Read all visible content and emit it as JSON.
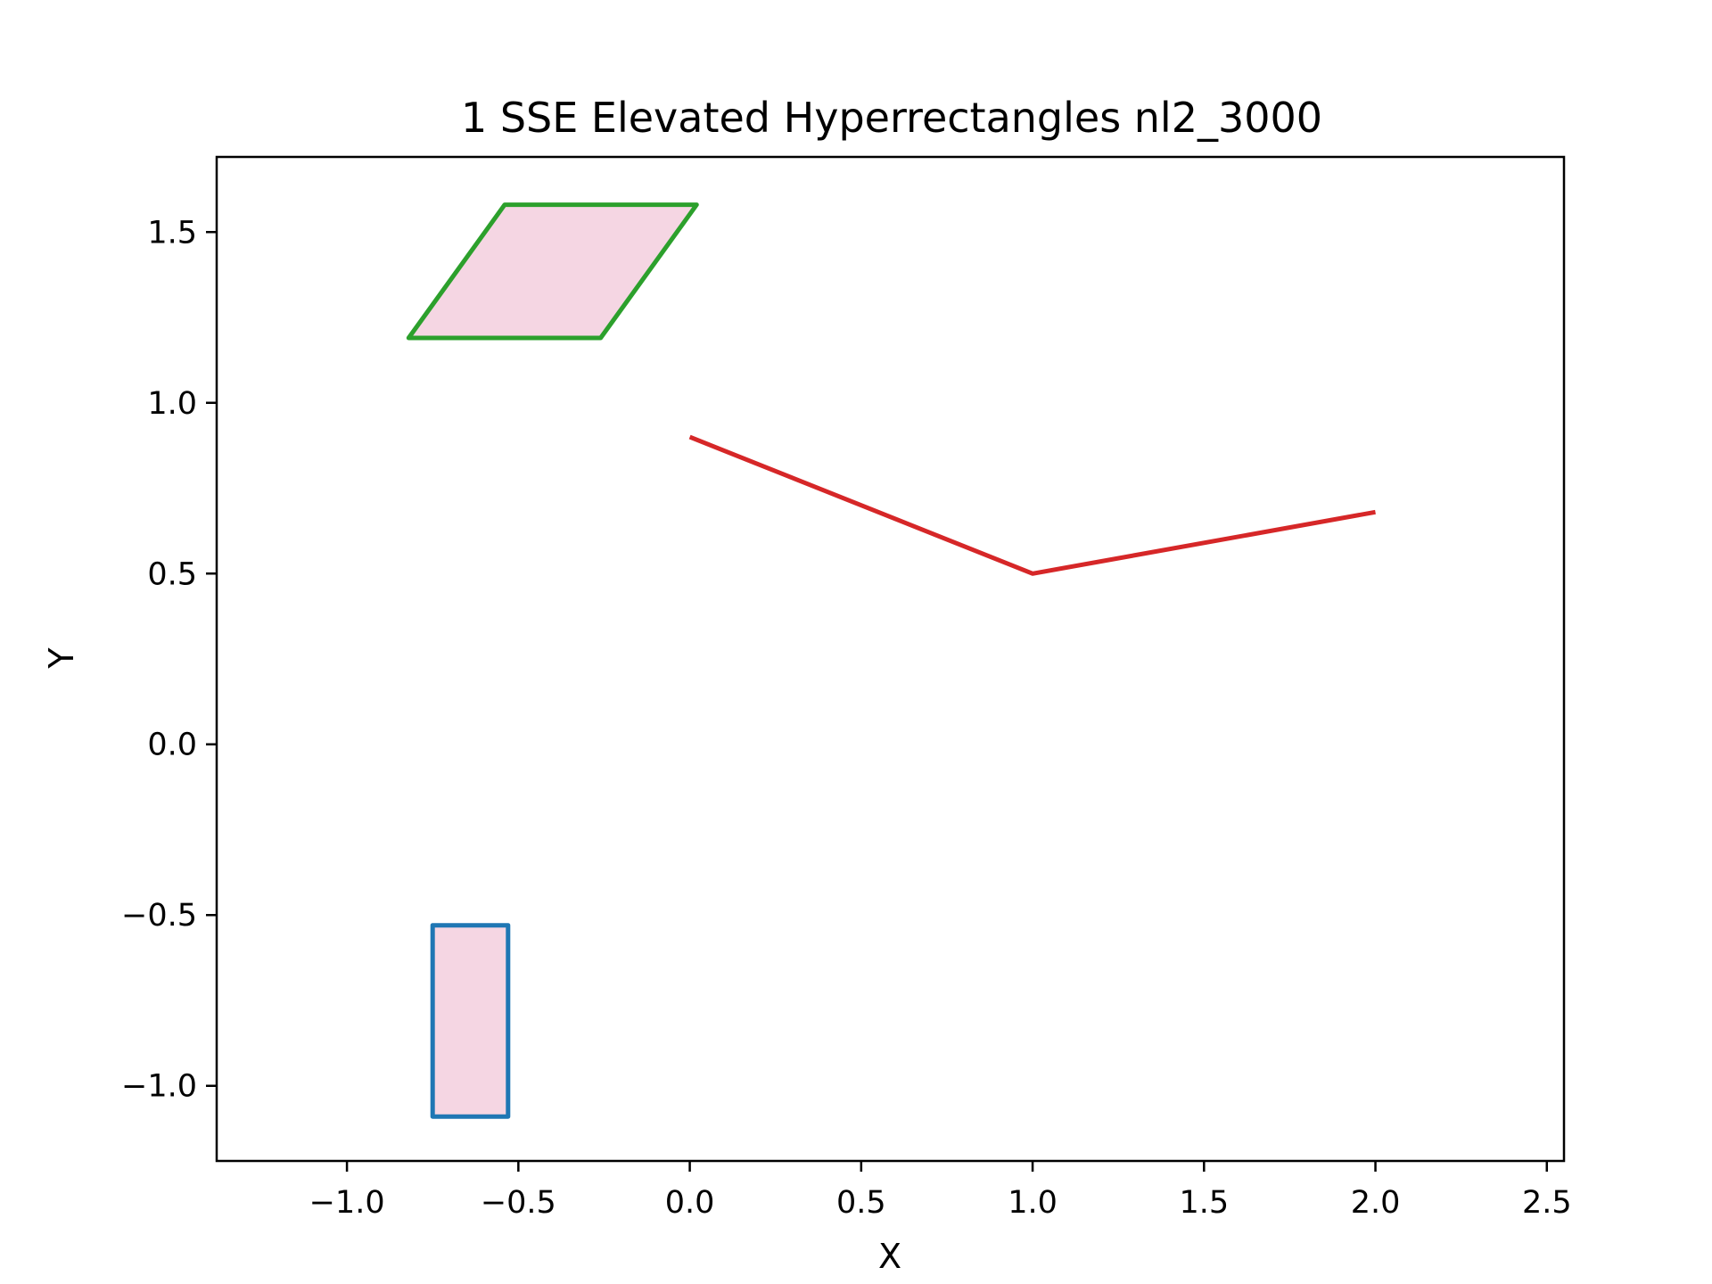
{
  "chart_data": {
    "type": "line",
    "title": "1 SSE Elevated Hyperrectangles nl2_3000",
    "xlabel": "X",
    "ylabel": "Y",
    "xlim": [
      -1.38,
      2.55
    ],
    "ylim": [
      -1.22,
      1.72
    ],
    "grid": false,
    "x_ticks": [
      {
        "value": -1.0,
        "label": "−1.0"
      },
      {
        "value": -0.5,
        "label": "−0.5"
      },
      {
        "value": 0.0,
        "label": "0.0"
      },
      {
        "value": 0.5,
        "label": "0.5"
      },
      {
        "value": 1.0,
        "label": "1.0"
      },
      {
        "value": 1.5,
        "label": "1.5"
      },
      {
        "value": 2.0,
        "label": "2.0"
      },
      {
        "value": 2.5,
        "label": "2.5"
      }
    ],
    "y_ticks": [
      {
        "value": -1.0,
        "label": "−1.0"
      },
      {
        "value": -0.5,
        "label": "−0.5"
      },
      {
        "value": 0.0,
        "label": "0.0"
      },
      {
        "value": 0.5,
        "label": "0.5"
      },
      {
        "value": 1.0,
        "label": "1.0"
      },
      {
        "value": 1.5,
        "label": "1.5"
      }
    ],
    "polygons": [
      {
        "id": "green-parallelogram",
        "stroke": "#2ca02c",
        "fill": "#f5d6e3",
        "points": [
          [
            -0.82,
            1.19
          ],
          [
            -0.54,
            1.58
          ],
          [
            0.02,
            1.58
          ],
          [
            -0.26,
            1.19
          ]
        ]
      },
      {
        "id": "blue-rectangle",
        "stroke": "#1f77b4",
        "fill": "#f5d6e3",
        "points": [
          [
            -0.75,
            -1.09
          ],
          [
            -0.75,
            -0.53
          ],
          [
            -0.53,
            -0.53
          ],
          [
            -0.53,
            -1.09
          ]
        ]
      }
    ],
    "series": [
      {
        "color": "#d62728",
        "x": [
          0.0,
          1.0,
          2.0
        ],
        "y": [
          0.9,
          0.5,
          0.68
        ]
      }
    ]
  }
}
